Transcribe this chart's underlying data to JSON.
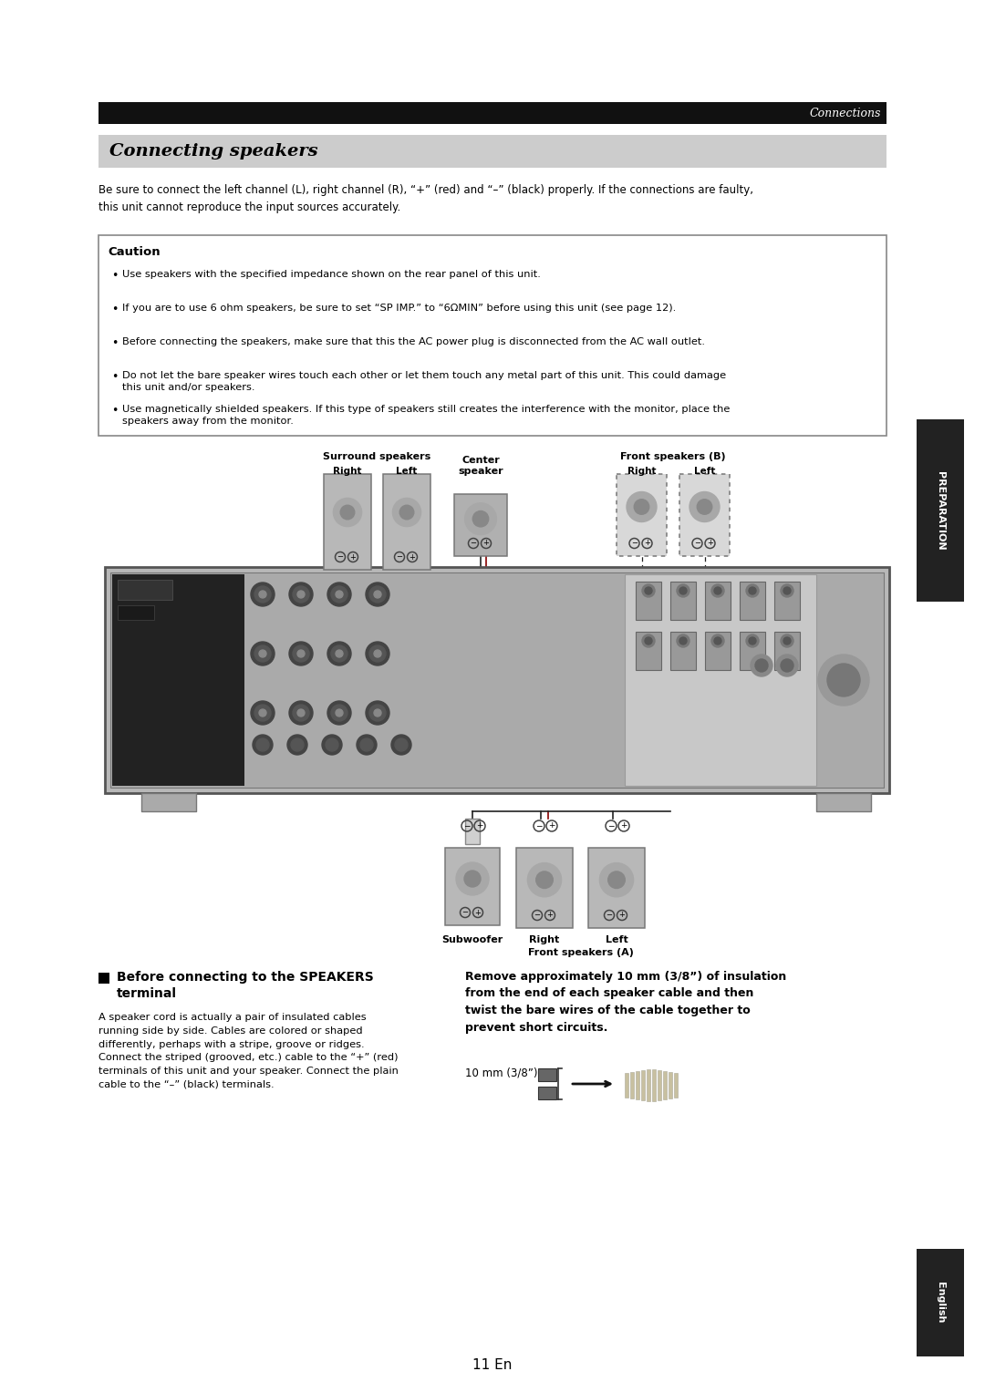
{
  "page_bg": "#ffffff",
  "top_bar_color": "#111111",
  "top_bar_text": "Connections",
  "section_header_bg": "#cccccc",
  "section_header_text": "Connecting speakers",
  "intro_text": "Be sure to connect the left channel (L), right channel (R), “+” (red) and “–” (black) properly. If the connections are faulty,\nthis unit cannot reproduce the input sources accurately.",
  "caution_title": "Caution",
  "caution_bullets": [
    "Use speakers with the specified impedance shown on the rear panel of this unit.",
    "If you are to use 6 ohm speakers, be sure to set “SP IMP.” to “6ΩMIN” before using this unit (see page 12).",
    "Before connecting the speakers, make sure that this the AC power plug is disconnected from the AC wall outlet.",
    "Do not let the bare speaker wires touch each other or let them touch any metal part of this unit. This could damage\nthis unit and/or speakers.",
    "Use magnetically shielded speakers. If this type of speakers still creates the interference with the monitor, place the\nspeakers away from the monitor."
  ],
  "lbl_surround": "Surround speakers",
  "lbl_surr_right": "Right",
  "lbl_surr_left": "Left",
  "lbl_center": "Center\nspeaker",
  "lbl_front_b": "Front speakers (B)",
  "lbl_fb_right": "Right",
  "lbl_fb_left": "Left",
  "lbl_subwoofer": "Subwoofer",
  "lbl_fa_right": "Right",
  "lbl_fa_left": "Left",
  "lbl_front_a": "Front speakers (A)",
  "before_title_line1": "Before connecting to the SPEAKERS",
  "before_title_line2": "terminal",
  "before_body": "A speaker cord is actually a pair of insulated cables\nrunning side by side. Cables are colored or shaped\ndifferently, perhaps with a stripe, groove or ridges.\nConnect the striped (grooved, etc.) cable to the “+” (red)\nterminals of this unit and your speaker. Connect the plain\ncable to the “–” (black) terminals.",
  "right_title": "Remove approximately 10 mm (3/8”) of insulation\nfrom the end of each speaker cable and then\ntwist the bare wires of the cable together to\nprevent short circuits.",
  "meas_label": "10 mm (3/8”)",
  "page_num": "11 En",
  "tab_prep": "PREPARATION",
  "tab_eng": "English"
}
